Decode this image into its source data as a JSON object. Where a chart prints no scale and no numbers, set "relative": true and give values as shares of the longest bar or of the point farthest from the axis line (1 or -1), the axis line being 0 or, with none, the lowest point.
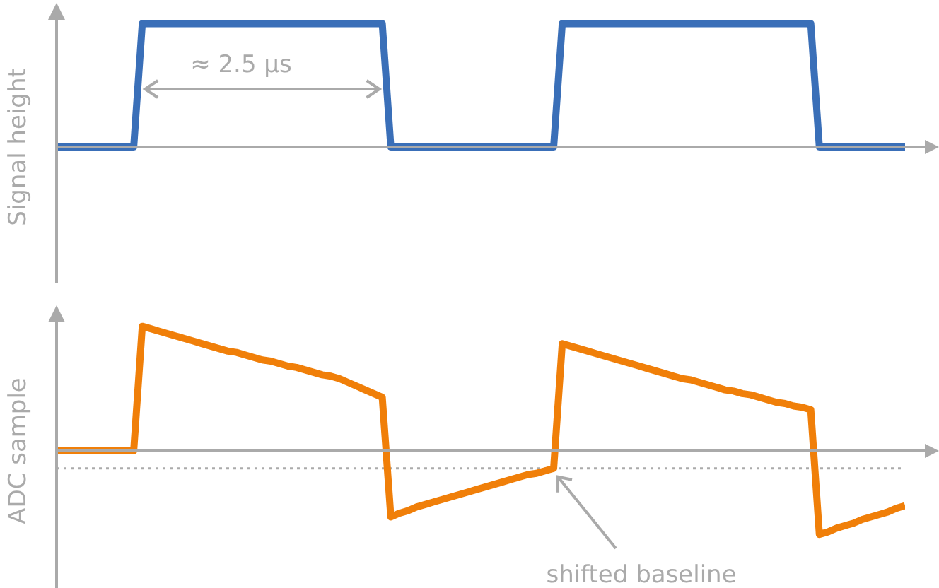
{
  "chart_data": [
    {
      "type": "line",
      "relative": true,
      "ylabel": "Signal height",
      "line_style": "solid",
      "annotations": [
        "≈ 2.5 µs"
      ],
      "categories": [
        null,
        null,
        null,
        null,
        null,
        null,
        null,
        null,
        null,
        null,
        null,
        null,
        null,
        null,
        null,
        null,
        null,
        null,
        null,
        null,
        null,
        null,
        null,
        null,
        null,
        null,
        null,
        null,
        null,
        null,
        null,
        null,
        null,
        null,
        null,
        null,
        null,
        null,
        null,
        null,
        null,
        null,
        null,
        null,
        null,
        null,
        null,
        null,
        null,
        null,
        null,
        null,
        null,
        null,
        null,
        null,
        null,
        null,
        null,
        null,
        null,
        null,
        null,
        null,
        null,
        null,
        null,
        null,
        null,
        null,
        null,
        null,
        null,
        null,
        null,
        null,
        null,
        null,
        null,
        null,
        null,
        null,
        null,
        null,
        null,
        null,
        null,
        null,
        null,
        null,
        null,
        null,
        null,
        null,
        null,
        null,
        null,
        null,
        null,
        null
      ],
      "series": [
        {
          "color": "#3a6fb8",
          "values": [
            0,
            0,
            0,
            0,
            0,
            0,
            0,
            0,
            0,
            0,
            1,
            1,
            1,
            1,
            1,
            1,
            1,
            1,
            1,
            1,
            1,
            1,
            1,
            1,
            1,
            1,
            1,
            1,
            1,
            1,
            1,
            1,
            1,
            1,
            1,
            1,
            1,
            1,
            1,
            0,
            0,
            0,
            0,
            0,
            0,
            0,
            0,
            0,
            0,
            0,
            0,
            0,
            0,
            0,
            0,
            0,
            0,
            0,
            0,
            1,
            1,
            1,
            1,
            1,
            1,
            1,
            1,
            1,
            1,
            1,
            1,
            1,
            1,
            1,
            1,
            1,
            1,
            1,
            1,
            1,
            1,
            1,
            1,
            1,
            1,
            1,
            1,
            1,
            1,
            0,
            0,
            0,
            0,
            0,
            0,
            0,
            0,
            0,
            0,
            0
          ]
        }
      ]
    },
    {
      "type": "line",
      "relative": true,
      "ylabel": "ADC sample",
      "line_style": "solid",
      "annotations": [
        "shifted baseline"
      ],
      "ref_lines": [
        {
          "axis": "y",
          "value": -0.14,
          "line_style": "dotted",
          "color": "#aaaaaa"
        }
      ],
      "categories": [
        null,
        null,
        null,
        null,
        null,
        null,
        null,
        null,
        null,
        null,
        null,
        null,
        null,
        null,
        null,
        null,
        null,
        null,
        null,
        null,
        null,
        null,
        null,
        null,
        null,
        null,
        null,
        null,
        null,
        null,
        null,
        null,
        null,
        null,
        null,
        null,
        null,
        null,
        null,
        null,
        null,
        null,
        null,
        null,
        null,
        null,
        null,
        null,
        null,
        null,
        null,
        null,
        null,
        null,
        null,
        null,
        null,
        null,
        null,
        null,
        null,
        null,
        null,
        null,
        null,
        null,
        null,
        null,
        null,
        null,
        null,
        null,
        null,
        null,
        null,
        null,
        null,
        null,
        null,
        null,
        null,
        null,
        null,
        null,
        null,
        null,
        null,
        null,
        null,
        null,
        null,
        null,
        null,
        null,
        null,
        null,
        null,
        null,
        null,
        null
      ],
      "series": [
        {
          "color": "#f07f09",
          "values": [
            0,
            0,
            0,
            0,
            0,
            0,
            0,
            0,
            0,
            0,
            1,
            0.98,
            0.96,
            0.94,
            0.92,
            0.9,
            0.88,
            0.86,
            0.84,
            0.82,
            0.8,
            0.79,
            0.77,
            0.75,
            0.73,
            0.72,
            0.7,
            0.68,
            0.67,
            0.65,
            0.63,
            0.61,
            0.6,
            0.58,
            0.55,
            0.52,
            0.49,
            0.46,
            0.43,
            -0.53,
            -0.5,
            -0.48,
            -0.45,
            -0.43,
            -0.41,
            -0.39,
            -0.37,
            -0.35,
            -0.33,
            -0.31,
            -0.29,
            -0.27,
            -0.25,
            -0.23,
            -0.21,
            -0.19,
            -0.18,
            -0.16,
            -0.14,
            0.86,
            0.84,
            0.82,
            0.8,
            0.78,
            0.76,
            0.74,
            0.72,
            0.7,
            0.68,
            0.66,
            0.64,
            0.62,
            0.6,
            0.58,
            0.57,
            0.55,
            0.53,
            0.51,
            0.49,
            0.48,
            0.46,
            0.45,
            0.43,
            0.41,
            0.39,
            0.38,
            0.36,
            0.35,
            0.33,
            -0.67,
            -0.65,
            -0.62,
            -0.6,
            -0.58,
            -0.55,
            -0.53,
            -0.51,
            -0.49,
            -0.46,
            -0.44
          ]
        }
      ]
    }
  ]
}
